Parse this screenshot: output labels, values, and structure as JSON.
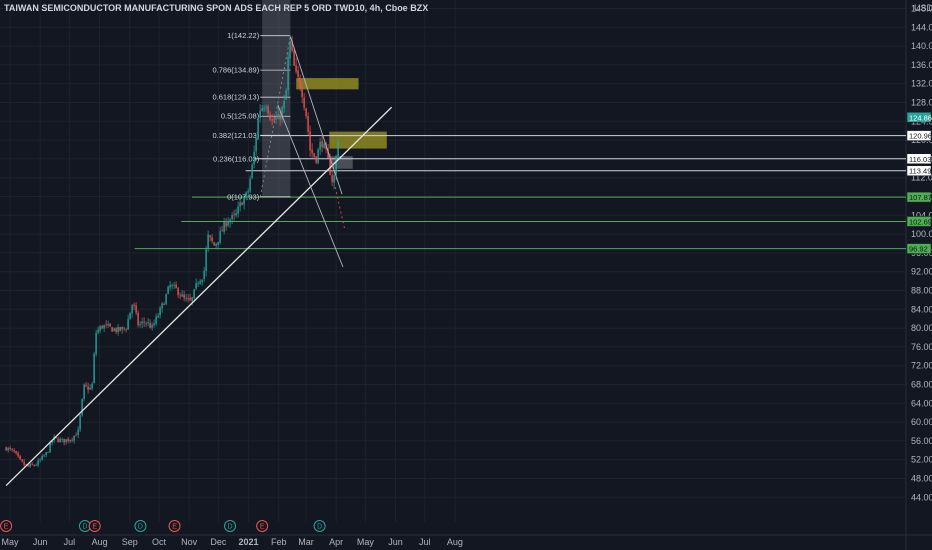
{
  "title": "TAIWAN SEMICONDUCTOR MANUFACTURING SPON ADS EACH REP 5 ORD TWD10, 4h, Cboe BZX",
  "currency": "USD",
  "colors": {
    "background": "#131722",
    "up": "#26a69a",
    "down": "#ef5350",
    "grid": "#1e222d",
    "level_line": "#4caf50",
    "trendline": "#e6e6e6",
    "zone": "#8f8a22"
  },
  "chart_data": {
    "type": "candlestick",
    "title": "TAIWAN SEMICONDUCTOR MANUFACTURING SPON ADS EACH REP 5 ORD TWD10, 4h, Cboe BZX",
    "ylim": [
      44,
      150
    ],
    "y_ticks": [
      "148.00",
      "144.00",
      "140.00",
      "136.00",
      "132.00",
      "128.00",
      "124.00",
      "120.00",
      "116.00",
      "112.00",
      "108.00",
      "104.00",
      "100.00",
      "96.00",
      "92.00",
      "88.00",
      "84.00",
      "80.00",
      "76.00",
      "72.00",
      "68.00",
      "64.00",
      "60.00",
      "56.00",
      "52.00",
      "48.00",
      "44.00"
    ],
    "x_ticks": [
      "May",
      "Jun",
      "Jul",
      "Aug",
      "Sep",
      "Oct",
      "Nov",
      "Dec",
      "2021",
      "Feb",
      "Mar",
      "Apr",
      "May",
      "Jun",
      "Jul",
      "Aug"
    ],
    "price_path": [
      [
        "2020-04-27",
        54.5
      ],
      [
        "2020-05-05",
        53.6
      ],
      [
        "2020-05-12",
        51.5
      ],
      [
        "2020-05-19",
        50.5
      ],
      [
        "2020-05-28",
        51.0
      ],
      [
        "2020-06-08",
        53.5
      ],
      [
        "2020-06-14",
        56.5
      ],
      [
        "2020-06-24",
        56.0
      ],
      [
        "2020-07-03",
        56.5
      ],
      [
        "2020-07-10",
        58.0
      ],
      [
        "2020-07-16",
        67.5
      ],
      [
        "2020-07-24",
        67.0
      ],
      [
        "2020-07-28",
        79.0
      ],
      [
        "2020-08-04",
        80.5
      ],
      [
        "2020-08-12",
        80.0
      ],
      [
        "2020-08-20",
        79.5
      ],
      [
        "2020-08-28",
        80.0
      ],
      [
        "2020-09-04",
        85.5
      ],
      [
        "2020-09-10",
        80.5
      ],
      [
        "2020-09-17",
        81.5
      ],
      [
        "2020-09-24",
        80.0
      ],
      [
        "2020-10-05",
        85.0
      ],
      [
        "2020-10-12",
        89.0
      ],
      [
        "2020-10-20",
        88.0
      ],
      [
        "2020-10-27",
        86.0
      ],
      [
        "2020-11-03",
        85.5
      ],
      [
        "2020-11-10",
        90.0
      ],
      [
        "2020-11-16",
        91.5
      ],
      [
        "2020-11-20",
        99.5
      ],
      [
        "2020-11-27",
        97.5
      ],
      [
        "2020-12-03",
        100.0
      ],
      [
        "2020-12-10",
        103.0
      ],
      [
        "2020-12-18",
        103.5
      ],
      [
        "2020-12-25",
        107.0
      ],
      [
        "2020-12-31",
        108.5
      ],
      [
        "2021-01-06",
        116.0
      ],
      [
        "2021-01-12",
        126.5
      ],
      [
        "2021-01-19",
        128.0
      ],
      [
        "2021-01-25",
        124.0
      ],
      [
        "2021-02-01",
        124.5
      ],
      [
        "2021-02-08",
        128.5
      ],
      [
        "2021-02-12",
        141.5
      ],
      [
        "2021-02-18",
        134.0
      ],
      [
        "2021-02-24",
        131.5
      ],
      [
        "2021-03-02",
        124.5
      ],
      [
        "2021-03-05",
        118.0
      ],
      [
        "2021-03-11",
        116.0
      ],
      [
        "2021-03-17",
        120.0
      ],
      [
        "2021-03-23",
        116.0
      ],
      [
        "2021-03-29",
        110.5
      ],
      [
        "2021-04-02",
        118.5
      ],
      [
        "2021-04-05",
        124.5
      ]
    ],
    "fibonacci": [
      {
        "label": "1(142.22)",
        "value": 142.22
      },
      {
        "label": "0.786(134.89)",
        "value": 134.89
      },
      {
        "label": "0.618(129.13)",
        "value": 129.13
      },
      {
        "label": "0.5(125.08)",
        "value": 125.08
      },
      {
        "label": "0.382(121.03)",
        "value": 121.03
      },
      {
        "label": "0.236(116.03)",
        "value": 116.03
      },
      {
        "label": "0(107.93)",
        "value": 107.93
      }
    ],
    "price_labels": [
      {
        "text": "124.86",
        "value": 124.86,
        "style": "last"
      },
      {
        "text": "120.96",
        "value": 120.96,
        "style": "white"
      },
      {
        "text": "116.03",
        "value": 116.03,
        "style": "white"
      },
      {
        "text": "113.49",
        "value": 113.49,
        "style": "white"
      },
      {
        "text": "107.87",
        "value": 107.87,
        "style": "green"
      },
      {
        "text": "102.69",
        "value": 102.69,
        "style": "green"
      },
      {
        "text": "96.92",
        "value": 96.92,
        "style": "green"
      }
    ],
    "horizontal_levels": [
      {
        "value": 120.96,
        "from": "2021-01-13",
        "color": "#d1d4dc"
      },
      {
        "value": 116.03,
        "from": "2021-01-07",
        "color": "#d1d4dc"
      },
      {
        "value": 113.49,
        "from": "2020-12-29",
        "color": "#d1d4dc"
      },
      {
        "value": 107.87,
        "from": "2020-11-04",
        "color": "#4caf50"
      },
      {
        "value": 102.69,
        "from": "2020-10-24",
        "color": "#4caf50"
      },
      {
        "value": 96.92,
        "from": "2020-09-06",
        "color": "#4caf50"
      }
    ],
    "zones": [
      {
        "from": "2021-02-19",
        "to": "2021-04-24",
        "low": 130.8,
        "high": 133.2,
        "color": "#8f8a22"
      },
      {
        "from": "2021-03-25",
        "to": "2021-05-23",
        "low": 118.2,
        "high": 121.8,
        "color": "#8f8a22"
      },
      {
        "from": "2021-03-25",
        "to": "2021-04-18",
        "low": 113.9,
        "high": 116.6,
        "color": "#787b86"
      }
    ],
    "highlight": {
      "from": "2021-01-15",
      "to": "2021-02-13"
    },
    "trendline": [
      [
        "2020-04-27",
        46.5
      ],
      [
        "2021-05-28",
        127.0
      ]
    ],
    "channel": [
      [
        [
          "2021-02-13",
          142.0
        ],
        [
          "2021-04-07",
          108.5
        ]
      ],
      [
        [
          "2021-01-31",
          127.5
        ],
        [
          "2021-04-08",
          93.0
        ]
      ]
    ],
    "events": [
      {
        "date": "2020-04-27",
        "label": "E"
      },
      {
        "date": "2020-07-17",
        "label": "D"
      },
      {
        "date": "2020-07-27",
        "label": "E"
      },
      {
        "date": "2020-09-12",
        "label": "D"
      },
      {
        "date": "2020-10-17",
        "label": "E"
      },
      {
        "date": "2020-12-13",
        "label": "D"
      },
      {
        "date": "2021-01-15",
        "label": "E"
      },
      {
        "date": "2021-03-15",
        "label": "D"
      }
    ]
  }
}
